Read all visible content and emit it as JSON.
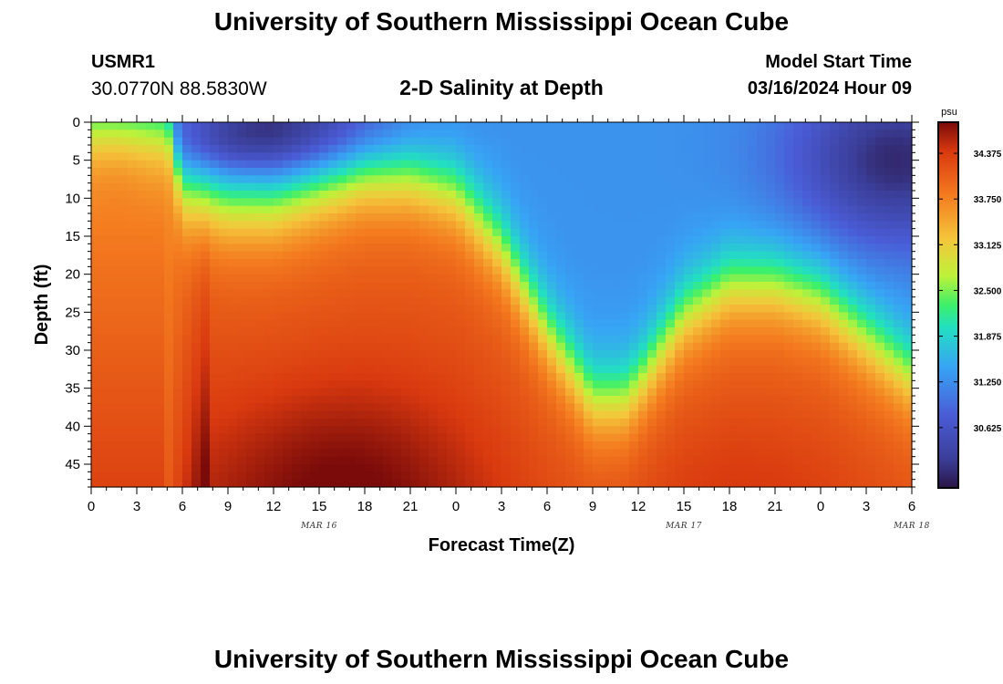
{
  "header": {
    "title": "University of Southern Mississippi Ocean Cube",
    "station_id": "USMR1",
    "coordinates": "30.0770N  88.5830W",
    "chart_title": "2-D Salinity at Depth",
    "model_label": "Model Start Time",
    "model_time": "03/16/2024 Hour 09"
  },
  "footer": {
    "title": "University of Southern Mississippi Ocean Cube"
  },
  "chart_data": {
    "type": "heatmap",
    "title": "2-D Salinity at Depth",
    "xlabel": "Forecast Time(Z)",
    "ylabel": "Depth (ft)",
    "x_tick_labels": [
      "0",
      "3",
      "6",
      "9",
      "12",
      "15",
      "18",
      "21",
      "0",
      "3",
      "6",
      "9",
      "12",
      "15",
      "18",
      "21",
      "0",
      "3",
      "6"
    ],
    "date_labels": [
      {
        "label": "MAR 16",
        "hour": 15
      },
      {
        "label": "MAR 17",
        "hour": 39
      },
      {
        "label": "MAR 18",
        "hour": 54
      }
    ],
    "x_range_hours": [
      0,
      54
    ],
    "y_ticks": [
      0,
      5,
      10,
      15,
      20,
      25,
      30,
      35,
      40,
      45
    ],
    "y_range_ft": [
      0,
      48
    ],
    "colorbar": {
      "unit": "psu",
      "min": 29.8,
      "max": 34.8,
      "ticks": [
        34.375,
        33.75,
        33.125,
        32.5,
        31.875,
        31.25,
        30.625
      ],
      "tick_labels": [
        "34.375",
        "33.750",
        "33.125",
        "32.500",
        "31.875",
        "31.250",
        "30.625"
      ]
    },
    "halocline": {
      "description": "depth (ft) of the fresh/salt interface vs forecast hour",
      "hours": [
        0,
        3,
        5,
        6,
        9,
        12,
        15,
        18,
        21,
        24,
        27,
        30,
        33,
        35,
        36,
        39,
        42,
        45,
        48,
        51,
        54
      ],
      "depth_ft": [
        0,
        0,
        0,
        9,
        11,
        11,
        9,
        7,
        7,
        9,
        16,
        27,
        36,
        36,
        34,
        25,
        21,
        21,
        23,
        28,
        33
      ]
    }
  }
}
